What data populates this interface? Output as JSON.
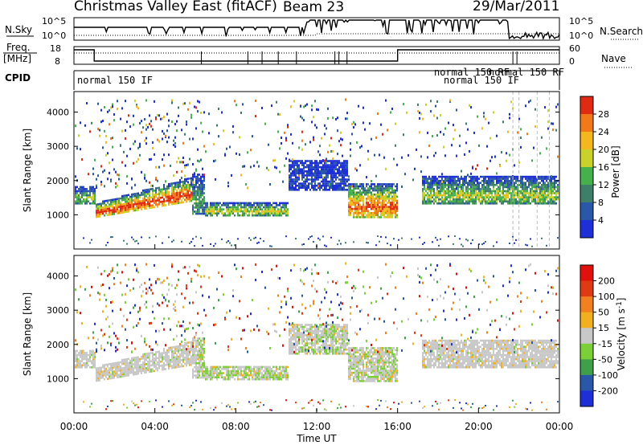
{
  "header": {
    "title": "Christmas Valley East (fitACF)",
    "beam": "Beam 23",
    "date": "29/Mar/2011"
  },
  "left_labels": {
    "nsky": "N.Sky",
    "freq": "Freq.",
    "freq_unit": "[MHz]",
    "cpid": "CPID"
  },
  "right_labels": {
    "nsearch": "N.Search",
    "nave": "Nave"
  },
  "noise_panel": {
    "left_ticks": [
      "10^5",
      "10^0"
    ],
    "right_ticks": [
      "10^5",
      "10^0"
    ]
  },
  "freq_panel": {
    "left_ticks": [
      "18",
      "8"
    ],
    "right_ticks": [
      "60",
      "0"
    ]
  },
  "cpid_panel": {
    "labels": [
      "normal 150 IF",
      "normal 150 RF",
      "normal 150 IF",
      "normal 150 RF"
    ]
  },
  "colors": {
    "power_scale": [
      "#1f2fd8",
      "#2a57a8",
      "#3f7f6a",
      "#46b04c",
      "#c8d22a",
      "#f2b81e",
      "#f07a1a",
      "#e02a14"
    ],
    "velocity_scale": [
      "#1f2fd8",
      "#2a57a8",
      "#3f9f4a",
      "#7dcf38",
      "#c8c8c8",
      "#f0b020",
      "#f08020",
      "#e03a14",
      "#e0100c"
    ]
  },
  "chart_data": [
    {
      "type": "heatmap",
      "name": "power",
      "ylabel": "Slant Range [km]",
      "ylim": [
        0,
        4600
      ],
      "yticks": [
        "4000",
        "3000",
        "2000",
        "1000"
      ],
      "colorbar": {
        "label": "Power [dB]",
        "ticks": [
          "28",
          "24",
          "20",
          "16",
          "12",
          "8",
          "4"
        ],
        "range": [
          0,
          32
        ]
      },
      "bands": [
        {
          "t0": 0.0,
          "t1": 2.5,
          "r0": 950,
          "r1": 1800,
          "level": "high"
        },
        {
          "t0": 2.5,
          "t1": 5.8,
          "r0": 1200,
          "r1": 2300,
          "level": "high"
        },
        {
          "t0": 6.5,
          "t1": 10.5,
          "r0": 950,
          "r1": 1300,
          "level": "mid"
        },
        {
          "t0": 14.0,
          "t1": 16.0,
          "r0": 900,
          "r1": 2000,
          "level": "high"
        },
        {
          "t0": 17.5,
          "t1": 24.0,
          "r0": 1300,
          "r1": 2100,
          "level": "mid"
        }
      ]
    },
    {
      "type": "heatmap",
      "name": "velocity",
      "xlabel": "Time UT",
      "ylabel": "Slant Range [km]",
      "ylim": [
        0,
        4600
      ],
      "yticks": [
        "4000",
        "3000",
        "2000",
        "1000"
      ],
      "xticks": [
        "00:00",
        "04:00",
        "08:00",
        "12:00",
        "16:00",
        "20:00",
        "00:00"
      ],
      "colorbar": {
        "label": "Velocity [m s-1]",
        "ticks": [
          "200",
          "100",
          "50",
          "15",
          "-15",
          "-50",
          "-100",
          "-200"
        ],
        "range": [
          -250,
          250
        ]
      }
    }
  ]
}
